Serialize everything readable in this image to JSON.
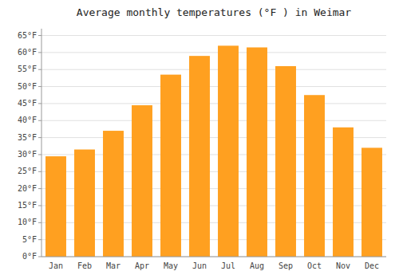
{
  "chart_data": {
    "type": "bar",
    "title": "Average monthly temperatures (°F ) in Weimar",
    "categories": [
      "Jan",
      "Feb",
      "Mar",
      "Apr",
      "May",
      "Jun",
      "Jul",
      "Aug",
      "Sep",
      "Oct",
      "Nov",
      "Dec"
    ],
    "values": [
      29.5,
      31.5,
      37.0,
      44.5,
      53.5,
      59.0,
      62.0,
      61.5,
      56.0,
      47.5,
      38.0,
      32.0
    ],
    "color": "#FFA020",
    "ylim": [
      0,
      67
    ],
    "yticks": [
      {
        "value": 0,
        "label": "0°F"
      },
      {
        "value": 5,
        "label": "5°F"
      },
      {
        "value": 10,
        "label": "10°F"
      },
      {
        "value": 15,
        "label": "15°F"
      },
      {
        "value": 20,
        "label": "20°F"
      },
      {
        "value": 25,
        "label": "25°F"
      },
      {
        "value": 30,
        "label": "30°F"
      },
      {
        "value": 35,
        "label": "35°F"
      },
      {
        "value": 40,
        "label": "40°F"
      },
      {
        "value": 45,
        "label": "45°F"
      },
      {
        "value": 50,
        "label": "50°F"
      },
      {
        "value": 55,
        "label": "55°F"
      },
      {
        "value": 60,
        "label": "60°F"
      },
      {
        "value": 65,
        "label": "65°F"
      }
    ],
    "grid": true
  }
}
